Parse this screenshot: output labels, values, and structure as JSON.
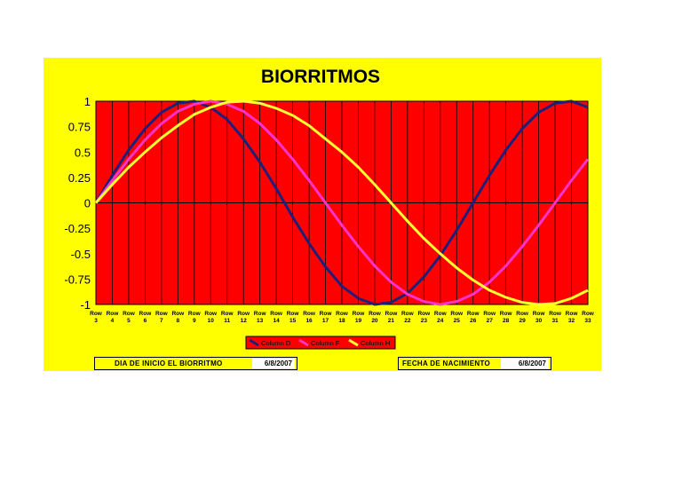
{
  "chart_data": {
    "type": "line",
    "title": "BIORRITMOS",
    "xlabel": "",
    "ylabel": "",
    "ylim": [
      -1,
      1
    ],
    "yticks": [
      1,
      0.75,
      0.5,
      0.25,
      0,
      -0.25,
      -0.5,
      -0.75,
      -1
    ],
    "ytick_labels": [
      "1",
      "0.75",
      "0.5",
      "0.25",
      "0",
      "-0.25",
      "-0.5",
      "-0.75",
      "-1"
    ],
    "categories": [
      [
        "Row",
        "3"
      ],
      [
        "Row",
        "4"
      ],
      [
        "Row",
        "5"
      ],
      [
        "Row",
        "6"
      ],
      [
        "Row",
        "7"
      ],
      [
        "Row",
        "8"
      ],
      [
        "Row",
        "9"
      ],
      [
        "Row",
        "10"
      ],
      [
        "Row",
        "11"
      ],
      [
        "Row",
        "12"
      ],
      [
        "Row",
        "13"
      ],
      [
        "Row",
        "14"
      ],
      [
        "Row",
        "15"
      ],
      [
        "Row",
        "16"
      ],
      [
        "Row",
        "17"
      ],
      [
        "Row",
        "18"
      ],
      [
        "Row",
        "19"
      ],
      [
        "Row",
        "20"
      ],
      [
        "Row",
        "21"
      ],
      [
        "Row",
        "22"
      ],
      [
        "Row",
        "23"
      ],
      [
        "Row",
        "24"
      ],
      [
        "Row",
        "25"
      ],
      [
        "Row",
        "26"
      ],
      [
        "Row",
        "27"
      ],
      [
        "Row",
        "28"
      ],
      [
        "Row",
        "29"
      ],
      [
        "Row",
        "30"
      ],
      [
        "Row",
        "31"
      ],
      [
        "Row",
        "32"
      ],
      [
        "Row",
        "33"
      ]
    ],
    "grid": "vertical",
    "legend_position": "bottom",
    "series": [
      {
        "name": "Column D",
        "color": "#1f1f7a",
        "values": [
          0,
          0.27,
          0.52,
          0.73,
          0.89,
          0.98,
          1.0,
          0.94,
          0.82,
          0.63,
          0.4,
          0.14,
          -0.14,
          -0.4,
          -0.63,
          -0.82,
          -0.94,
          -1.0,
          -0.98,
          -0.89,
          -0.73,
          -0.52,
          -0.27,
          0,
          0.27,
          0.52,
          0.73,
          0.89,
          0.98,
          1.0,
          0.94
        ]
      },
      {
        "name": "Column F",
        "color": "#ff33cc",
        "values": [
          0,
          0.22,
          0.43,
          0.62,
          0.78,
          0.9,
          0.97,
          1.0,
          0.97,
          0.9,
          0.78,
          0.62,
          0.43,
          0.22,
          0,
          -0.22,
          -0.43,
          -0.62,
          -0.78,
          -0.9,
          -0.97,
          -1.0,
          -0.97,
          -0.9,
          -0.78,
          -0.62,
          -0.43,
          -0.22,
          0,
          0.22,
          0.43
        ]
      },
      {
        "name": "Column H",
        "color": "#ffff33",
        "values": [
          0,
          0.18,
          0.35,
          0.5,
          0.64,
          0.76,
          0.87,
          0.94,
          0.99,
          1.0,
          0.98,
          0.93,
          0.86,
          0.76,
          0.63,
          0.5,
          0.35,
          0.18,
          0,
          -0.18,
          -0.35,
          -0.5,
          -0.64,
          -0.76,
          -0.86,
          -0.93,
          -0.98,
          -1.0,
          -0.99,
          -0.94,
          -0.86
        ]
      }
    ],
    "colors": {
      "panel": "#ffff00",
      "plot_area": "#ff0000"
    }
  },
  "fields": {
    "start_label": "DIA DE INICIO EL BIORRITMO",
    "start_value": "6/8/2007",
    "birth_label": "FECHA DE NACIMIENTO",
    "birth_value": "6/8/2007"
  }
}
